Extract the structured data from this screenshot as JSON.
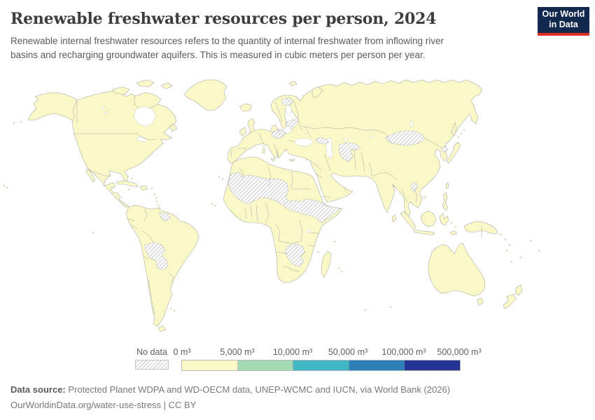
{
  "header": {
    "title": "Renewable freshwater resources per person, 2024",
    "subtitle_line1": "Renewable internal freshwater resources refers to the quantity of internal freshwater from inflowing river",
    "subtitle_line2": "basins and recharging groundwater aquifers. This is measured in cubic meters per person per year."
  },
  "logo": {
    "line1": "Our World",
    "line2": "in Data"
  },
  "legend": {
    "no_data_label": "No data",
    "tick_labels": [
      "0 m³",
      "5,000 m³",
      "10,000 m³",
      "50,000 m³",
      "100,000 m³",
      "500,000 m³"
    ],
    "scale_colors": [
      "#f9f8c6",
      "#a1dab4",
      "#41b6c4",
      "#2c7fb8",
      "#253494"
    ],
    "scale_values": [
      0,
      5000,
      10000,
      50000,
      100000,
      500000
    ],
    "unit": "m³"
  },
  "map": {
    "type": "choropleth-world-map",
    "land_with_data_color": "#f9f8c6",
    "no_data_regions": [
      "Western Sahara-Mauritania-Mali-Niger-Chad",
      "Central African Republic-South Sudan-Ethiopia-Somalia",
      "Zambia-Zimbabwe",
      "Bolivia-Paraguay",
      "Guyana-Suriname",
      "Mongolia",
      "Uzbekistan-Turkmenistan",
      "Belarus",
      "Central Europe",
      "Caucasus",
      "North Korea",
      "Laos",
      "Northern Scandinavia"
    ]
  },
  "footer": {
    "data_source_label": "Data source:",
    "data_source_text": " Protected Planet WDPA and WD-OECM data, UNEP-WCMC and IUCN, via World Bank (2026)",
    "link_text": "OurWorldinData.org/water-use-stress | CC BY"
  },
  "colors": {
    "css": {
      "--land": "#f9f8c6",
      "--border": "#a6a6a6",
      "--hatch": "#cfcfcf",
      "--sea-stroke": "#c6c6c6",
      "--logo-navy": "#12294d",
      "--logo-red": "#dc3022"
    }
  }
}
